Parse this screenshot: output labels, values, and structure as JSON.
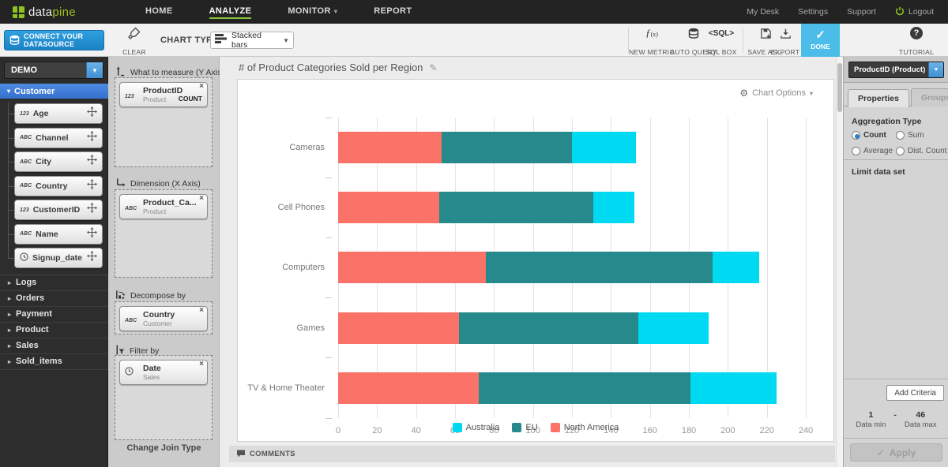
{
  "brand": {
    "logo_left": "data",
    "logo_right": "pine"
  },
  "nav": {
    "items": [
      {
        "label": "HOME"
      },
      {
        "label": "ANALYZE",
        "active": true
      },
      {
        "label": "MONITOR",
        "caret": true
      },
      {
        "label": "REPORT"
      }
    ],
    "right_items": [
      "My Desk",
      "Settings",
      "Support"
    ],
    "logout_label": "Logout"
  },
  "toolbar": {
    "connect_label": "CONNECT YOUR DATASOURCE",
    "clear_label": "CLEAR",
    "chart_type_label": "CHART TYPE",
    "chart_type_value": "Stacked bars",
    "new_metric_label": "NEW METRIC",
    "auto_query_label": "AUTO QUERY",
    "sql_box_label": "SQL BOX",
    "sql_box_glyph": "<SQL>",
    "save_as_label": "SAVE AS...",
    "export_label": "EXPORT",
    "done_label": "DONE",
    "tutorial_label": "TUTORIAL"
  },
  "sidebar": {
    "datasource_value": "DEMO",
    "active_section": "Customer",
    "fields": [
      {
        "name": "Age",
        "type": "number"
      },
      {
        "name": "Channel",
        "type": "text"
      },
      {
        "name": "City",
        "type": "text"
      },
      {
        "name": "Country",
        "type": "text"
      },
      {
        "name": "CustomerID",
        "type": "number"
      },
      {
        "name": "Name",
        "type": "text"
      },
      {
        "name": "Signup_date",
        "type": "date"
      }
    ],
    "collapsed_sections": [
      "Logs",
      "Orders",
      "Payment",
      "Product",
      "Sales",
      "Sold_items"
    ]
  },
  "builder": {
    "measure_label": "What to measure (Y Axis)",
    "measure_cards": [
      {
        "title": "ProductID",
        "subtitle": "Product",
        "badge": "COUNT",
        "type": "number"
      }
    ],
    "dimension_label": "Dimension (X Axis)",
    "dimension_cards": [
      {
        "title": "Product_Ca...",
        "subtitle": "Product",
        "type": "text"
      }
    ],
    "decompose_label": "Decompose by",
    "decompose_cards": [
      {
        "title": "Country",
        "subtitle": "Customer",
        "type": "text"
      }
    ],
    "filter_label": "Filter by",
    "filter_cards": [
      {
        "title": "Date",
        "subtitle": "Sales",
        "type": "date"
      }
    ],
    "change_join_label": "Change Join Type"
  },
  "chart": {
    "title": "# of Product Categories Sold per Region",
    "options_label": "Chart Options",
    "comments_label": "COMMENTS"
  },
  "chart_data": {
    "type": "bar",
    "orientation": "horizontal",
    "stacked": true,
    "title": "# of Product Categories Sold per Region",
    "categories": [
      "Cameras",
      "Cell Phones",
      "Computers",
      "Games",
      "TV & Home Theater"
    ],
    "series": [
      {
        "name": "North America",
        "color": "#fa7268",
        "values": [
          53,
          52,
          76,
          62,
          72
        ]
      },
      {
        "name": "EU",
        "color": "#26898b",
        "values": [
          67,
          79,
          116,
          92,
          109
        ]
      },
      {
        "name": "Australia",
        "color": "#00d9f2",
        "values": [
          33,
          21,
          24,
          36,
          44
        ]
      }
    ],
    "legend": [
      "Australia",
      "EU",
      "North America"
    ],
    "legend_position": "bottom",
    "xlim": [
      0,
      240
    ],
    "xtick_step": 20,
    "grid": true
  },
  "inspector": {
    "field_value": "ProductID (Product)",
    "tabs": [
      {
        "label": "Properties",
        "active": true
      },
      {
        "label": "Groups",
        "active": false
      }
    ],
    "aggregation_label": "Aggregation Type",
    "aggregation_options": [
      "Count",
      "Sum",
      "Average",
      "Dist. Count"
    ],
    "aggregation_selected": "Count",
    "limit_label": "Limit data set",
    "add_criteria_label": "Add Criteria",
    "data_min_value": "1",
    "range_separator": "-",
    "data_max_value": "46",
    "data_min_label": "Data min",
    "data_max_label": "Data max",
    "apply_label": "Apply"
  }
}
